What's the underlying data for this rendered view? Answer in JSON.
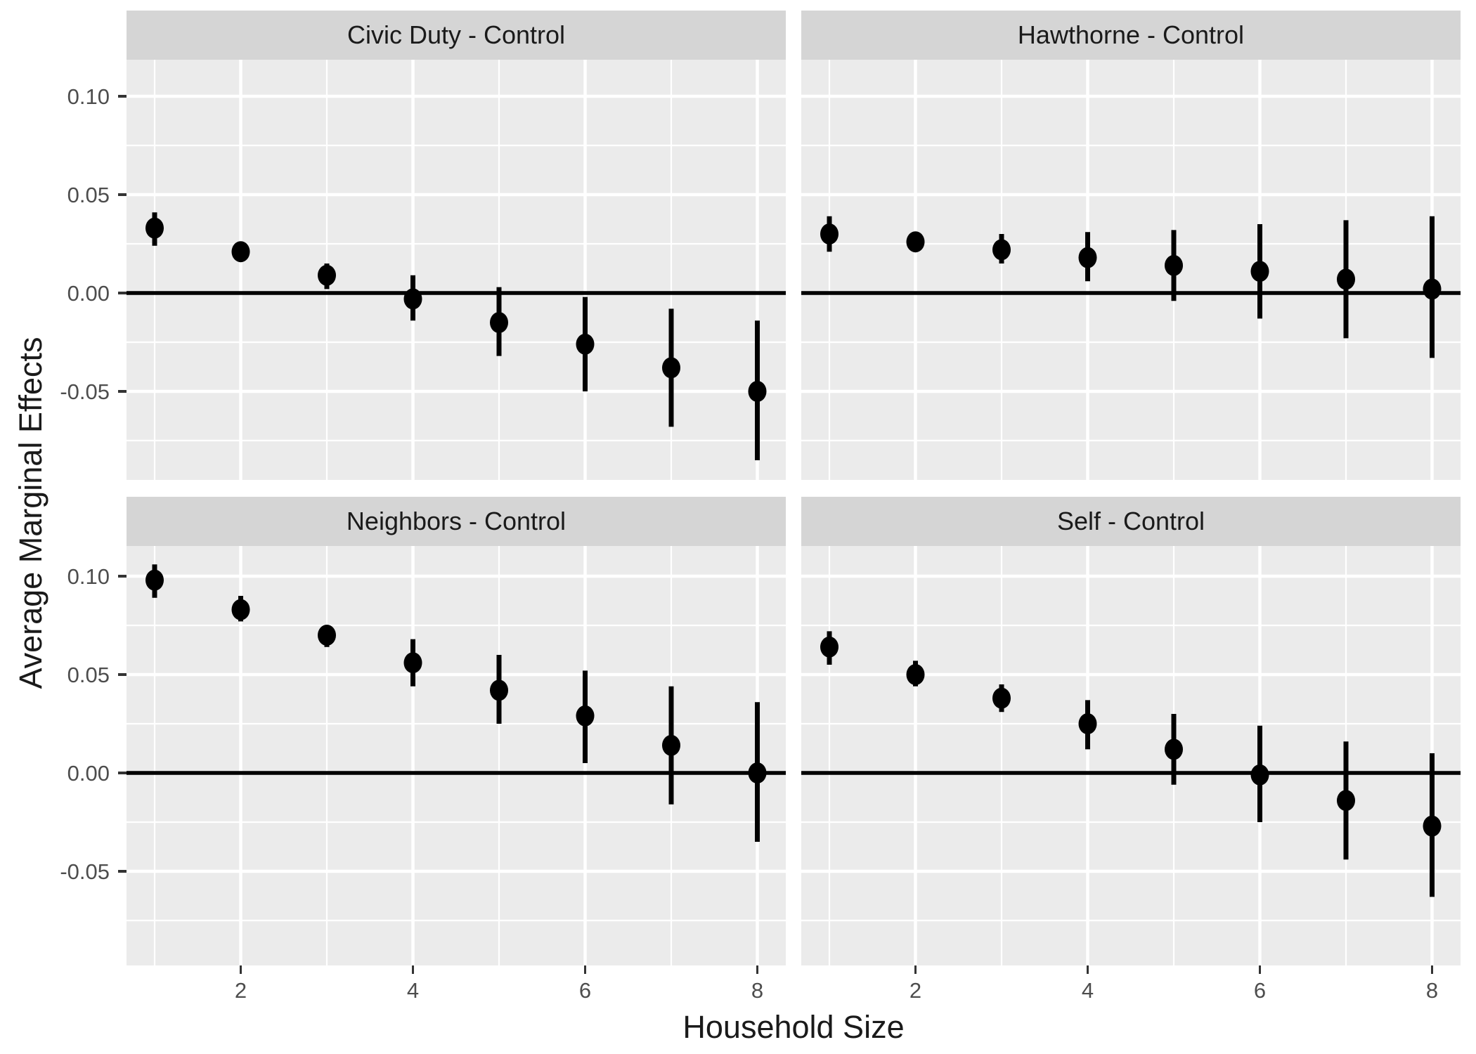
{
  "chart_data": {
    "type": "scatter",
    "subtype": "pointrange-facets",
    "title": "",
    "xlabel": "Household Size",
    "ylabel": "Average Marginal Effects",
    "facet_layout": "2x2",
    "grid": true,
    "legend": false,
    "reference_line_y": 0,
    "x": [
      1,
      2,
      3,
      4,
      5,
      6,
      7,
      8
    ],
    "x_ticks": {
      "values": [
        2,
        4,
        6,
        8
      ],
      "labels": [
        "2",
        "4",
        "6",
        "8"
      ]
    },
    "x_minor": [
      1,
      3,
      5,
      7
    ],
    "y_ticks": {
      "values": [
        0.1,
        0.05,
        0.0,
        -0.05
      ],
      "labels": [
        "0.10",
        "0.05",
        "0.00",
        "-0.05"
      ]
    },
    "y_minor": [
      0.075,
      0.025,
      -0.025,
      -0.075
    ],
    "ylim_top_row": [
      -0.095,
      0.1186
    ],
    "ylim_bottom_row": [
      -0.098,
      0.1154
    ],
    "panels": [
      {
        "title": "Civic Duty - Control",
        "row": 0,
        "col": 0,
        "estimates": [
          0.033,
          0.021,
          0.009,
          -0.003,
          -0.015,
          -0.026,
          -0.038,
          -0.05
        ],
        "ci_low": [
          0.024,
          0.016,
          0.002,
          -0.014,
          -0.032,
          -0.05,
          -0.068,
          -0.085
        ],
        "ci_high": [
          0.041,
          0.026,
          0.015,
          0.009,
          0.003,
          -0.002,
          -0.008,
          -0.014
        ]
      },
      {
        "title": "Hawthorne - Control",
        "row": 0,
        "col": 1,
        "estimates": [
          0.03,
          0.026,
          0.022,
          0.018,
          0.014,
          0.011,
          0.007,
          0.002
        ],
        "ci_low": [
          0.021,
          0.021,
          0.015,
          0.006,
          -0.004,
          -0.013,
          -0.023,
          -0.033
        ],
        "ci_high": [
          0.039,
          0.031,
          0.03,
          0.031,
          0.032,
          0.035,
          0.037,
          0.039
        ]
      },
      {
        "title": "Neighbors - Control",
        "row": 1,
        "col": 0,
        "estimates": [
          0.098,
          0.083,
          0.07,
          0.056,
          0.042,
          0.029,
          0.014,
          0.0
        ],
        "ci_low": [
          0.089,
          0.077,
          0.064,
          0.044,
          0.025,
          0.005,
          -0.016,
          -0.035
        ],
        "ci_high": [
          0.106,
          0.09,
          0.075,
          0.068,
          0.06,
          0.052,
          0.044,
          0.036
        ]
      },
      {
        "title": "Self - Control",
        "row": 1,
        "col": 1,
        "estimates": [
          0.064,
          0.05,
          0.038,
          0.025,
          0.012,
          -0.001,
          -0.014,
          -0.027
        ],
        "ci_low": [
          0.055,
          0.044,
          0.031,
          0.012,
          -0.006,
          -0.025,
          -0.044,
          -0.063
        ],
        "ci_high": [
          0.072,
          0.057,
          0.045,
          0.037,
          0.03,
          0.024,
          0.016,
          0.01
        ]
      }
    ],
    "colors": {
      "background": "#FFFFFF",
      "panel_background": "#EBEBEB",
      "strip_background": "#D5D5D5",
      "strip_text": "#1A1A1A",
      "grid_major": "#FFFFFF",
      "grid_minor": "#FFFFFF",
      "axis_text": "#4D4D4D",
      "axis_title": "#1A1A1A",
      "tick_mark": "#333333",
      "point": "#000000",
      "error_bar": "#000000",
      "reference_line": "#000000"
    }
  }
}
